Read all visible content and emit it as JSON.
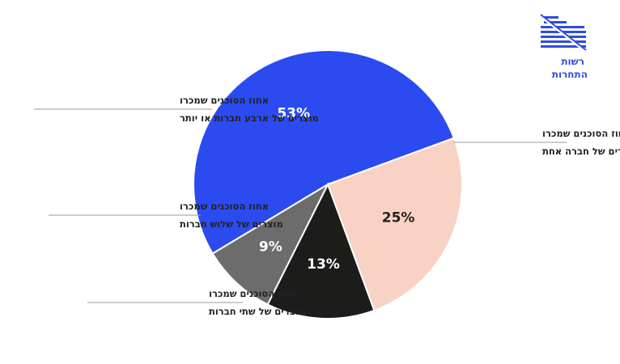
{
  "brand": {
    "logo_line1": "רשות",
    "logo_line2": "התחרות",
    "color": "#2f4de0"
  },
  "chart_data": {
    "type": "pie",
    "slices": [
      {
        "label": "אחוז הסוכנים שמכרו מוצרים של חברה אחת",
        "label_lines": [
          "אחוז הסוכנים שמכרו",
          "מוצרים של חברה אחת"
        ],
        "value": 53,
        "value_label": "53%",
        "color": "#2b4bf0",
        "text_color": "#ffffff"
      },
      {
        "label": "אחוז הסוכנים שמכרו מוצרים של שתי חברות",
        "label_lines": [
          "אחוז הסוכנים שמכרו",
          "מוצרים של שתי חברות"
        ],
        "value": 25,
        "value_label": "25%",
        "color": "#f8d2c4",
        "text_color": "#222222"
      },
      {
        "label": "אחוז הסוכנים שמכרו מוצרים של שלוש חברות",
        "label_lines": [
          "אחוז הסוכנים שמכרו",
          "מוצרים של שלוש חברות"
        ],
        "value": 13,
        "value_label": "13%",
        "color": "#1c1c1a",
        "text_color": "#ffffff"
      },
      {
        "label": "אחוז הסוכנים שמכרו מוצרים של ארבע חברות או יותר",
        "label_lines": [
          "אחוז הסוכנים שמכרו",
          "מוצרים של ארבע חברות או יותר"
        ],
        "value": 9,
        "value_label": "9%",
        "color": "#6c6c6c",
        "text_color": "#ffffff"
      }
    ]
  }
}
